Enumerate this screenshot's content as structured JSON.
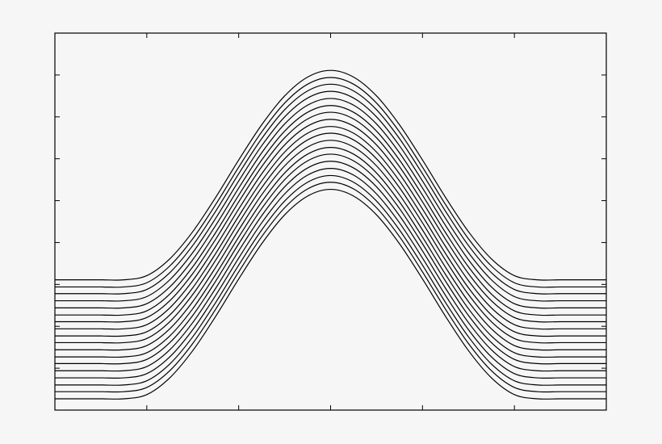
{
  "chart_data": {
    "type": "line",
    "x": [
      0,
      0.25,
      0.5,
      0.75,
      1,
      1.25,
      1.5,
      1.75,
      2,
      2.25,
      2.5,
      2.75,
      3,
      3.25,
      3.5,
      3.75,
      4,
      4.25,
      4.5,
      4.75,
      5,
      5.25,
      5.5,
      5.75,
      6
    ],
    "xlim": [
      0,
      6
    ],
    "xticks": [
      1,
      2,
      3,
      4,
      5
    ],
    "ylim": [
      0,
      9
    ],
    "yticks": [
      1,
      2,
      3,
      4,
      5,
      6,
      7,
      8
    ],
    "grid": false,
    "series": [
      {
        "color": "#000000",
        "values": [
          0.27,
          0.27,
          0.27,
          0.27,
          0.37,
          0.77,
          1.42,
          2.24,
          3.13,
          3.97,
          4.66,
          5.11,
          5.27,
          5.11,
          4.66,
          3.97,
          3.13,
          2.24,
          1.42,
          0.77,
          0.37,
          0.27,
          0.27,
          0.27,
          0.27
        ]
      },
      {
        "color": "#000000",
        "values": [
          0.44,
          0.44,
          0.44,
          0.44,
          0.54,
          0.94,
          1.59,
          2.41,
          3.3,
          4.14,
          4.83,
          5.28,
          5.44,
          5.28,
          4.83,
          4.14,
          3.3,
          2.41,
          1.59,
          0.94,
          0.54,
          0.44,
          0.44,
          0.44,
          0.44
        ]
      },
      {
        "color": "#000000",
        "values": [
          0.6,
          0.6,
          0.6,
          0.6,
          0.7,
          1.1,
          1.75,
          2.57,
          3.46,
          4.3,
          4.99,
          5.44,
          5.6,
          5.44,
          4.99,
          4.3,
          3.46,
          2.57,
          1.75,
          1.1,
          0.7,
          0.6,
          0.6,
          0.6,
          0.6
        ]
      },
      {
        "color": "#000000",
        "values": [
          0.77,
          0.77,
          0.77,
          0.77,
          0.87,
          1.27,
          1.92,
          2.74,
          3.63,
          4.47,
          5.16,
          5.61,
          5.77,
          5.61,
          5.16,
          4.47,
          3.63,
          2.74,
          1.92,
          1.27,
          0.87,
          0.77,
          0.77,
          0.77,
          0.77
        ]
      },
      {
        "color": "#000000",
        "values": [
          0.94,
          0.94,
          0.94,
          0.94,
          1.04,
          1.44,
          2.09,
          2.91,
          3.8,
          4.64,
          5.33,
          5.78,
          5.94,
          5.78,
          5.33,
          4.64,
          3.8,
          2.91,
          2.09,
          1.44,
          1.04,
          0.94,
          0.94,
          0.94,
          0.94
        ]
      },
      {
        "color": "#000000",
        "values": [
          1.11,
          1.11,
          1.11,
          1.11,
          1.21,
          1.61,
          2.26,
          3.08,
          3.97,
          4.81,
          5.5,
          5.95,
          6.11,
          5.95,
          5.5,
          4.81,
          3.97,
          3.08,
          2.26,
          1.61,
          1.21,
          1.11,
          1.11,
          1.11,
          1.11
        ]
      },
      {
        "color": "#000000",
        "values": [
          1.27,
          1.27,
          1.27,
          1.27,
          1.37,
          1.77,
          2.42,
          3.24,
          4.13,
          4.97,
          5.66,
          6.11,
          6.27,
          6.11,
          5.66,
          4.97,
          4.13,
          3.24,
          2.42,
          1.77,
          1.37,
          1.27,
          1.27,
          1.27,
          1.27
        ]
      },
      {
        "color": "#000000",
        "values": [
          1.44,
          1.44,
          1.44,
          1.44,
          1.54,
          1.94,
          2.59,
          3.41,
          4.3,
          5.14,
          5.83,
          6.28,
          6.44,
          6.28,
          5.83,
          5.14,
          4.3,
          3.41,
          2.59,
          1.94,
          1.54,
          1.44,
          1.44,
          1.44,
          1.44
        ]
      },
      {
        "color": "#000000",
        "values": [
          1.61,
          1.61,
          1.61,
          1.61,
          1.71,
          2.11,
          2.76,
          3.58,
          4.47,
          5.31,
          6.0,
          6.45,
          6.61,
          6.45,
          6.0,
          5.31,
          4.47,
          3.58,
          2.76,
          2.11,
          1.71,
          1.61,
          1.61,
          1.61,
          1.61
        ]
      },
      {
        "color": "#000000",
        "values": [
          1.77,
          1.77,
          1.77,
          1.77,
          1.87,
          2.27,
          2.92,
          3.74,
          4.63,
          5.47,
          6.16,
          6.61,
          6.77,
          6.61,
          6.16,
          5.47,
          4.63,
          3.74,
          2.92,
          2.27,
          1.87,
          1.77,
          1.77,
          1.77,
          1.77
        ]
      },
      {
        "color": "#000000",
        "values": [
          1.94,
          1.94,
          1.94,
          1.94,
          2.04,
          2.44,
          3.09,
          3.91,
          4.8,
          5.64,
          6.33,
          6.78,
          6.94,
          6.78,
          6.33,
          5.64,
          4.8,
          3.91,
          3.09,
          2.44,
          2.04,
          1.94,
          1.94,
          1.94,
          1.94
        ]
      },
      {
        "color": "#000000",
        "values": [
          2.11,
          2.11,
          2.11,
          2.11,
          2.21,
          2.61,
          3.26,
          4.08,
          4.97,
          5.81,
          6.5,
          6.95,
          7.11,
          6.95,
          6.5,
          5.81,
          4.97,
          4.08,
          3.26,
          2.61,
          2.21,
          2.11,
          2.11,
          2.11,
          2.11
        ]
      },
      {
        "color": "#000000",
        "values": [
          2.27,
          2.27,
          2.27,
          2.27,
          2.37,
          2.77,
          3.42,
          4.24,
          5.13,
          5.97,
          6.66,
          7.11,
          7.27,
          7.11,
          6.66,
          5.97,
          5.13,
          4.24,
          3.42,
          2.77,
          2.37,
          2.27,
          2.27,
          2.27,
          2.27
        ]
      },
      {
        "color": "#000000",
        "values": [
          2.44,
          2.44,
          2.44,
          2.44,
          2.54,
          2.94,
          3.59,
          4.41,
          5.3,
          6.14,
          6.83,
          7.28,
          7.44,
          7.28,
          6.83,
          6.14,
          5.3,
          4.41,
          3.59,
          2.94,
          2.54,
          2.44,
          2.44,
          2.44,
          2.44
        ]
      },
      {
        "color": "#000000",
        "values": [
          2.61,
          2.61,
          2.61,
          2.61,
          2.71,
          3.11,
          3.76,
          4.58,
          5.47,
          6.31,
          7.0,
          7.45,
          7.61,
          7.45,
          7.0,
          6.31,
          5.47,
          4.58,
          3.76,
          3.11,
          2.71,
          2.61,
          2.61,
          2.61,
          2.61
        ]
      },
      {
        "color": "#000000",
        "values": [
          2.78,
          2.78,
          2.78,
          2.78,
          2.88,
          3.28,
          3.93,
          4.75,
          5.64,
          6.48,
          7.17,
          7.62,
          7.78,
          7.62,
          7.17,
          6.48,
          5.64,
          4.75,
          3.93,
          3.28,
          2.88,
          2.78,
          2.78,
          2.78,
          2.78
        ]
      },
      {
        "color": "#000000",
        "values": [
          2.94,
          2.94,
          2.94,
          2.94,
          3.04,
          3.44,
          4.09,
          4.91,
          5.8,
          6.64,
          7.33,
          7.78,
          7.94,
          7.78,
          7.33,
          6.64,
          5.8,
          4.91,
          4.09,
          3.44,
          3.04,
          2.94,
          2.94,
          2.94,
          2.94
        ]
      },
      {
        "color": "#000000",
        "values": [
          3.11,
          3.11,
          3.11,
          3.11,
          3.21,
          3.61,
          4.26,
          5.08,
          5.97,
          6.81,
          7.5,
          7.95,
          8.11,
          7.95,
          7.5,
          6.81,
          5.97,
          5.08,
          4.26,
          3.61,
          3.21,
          3.11,
          3.11,
          3.11,
          3.11
        ]
      }
    ]
  }
}
